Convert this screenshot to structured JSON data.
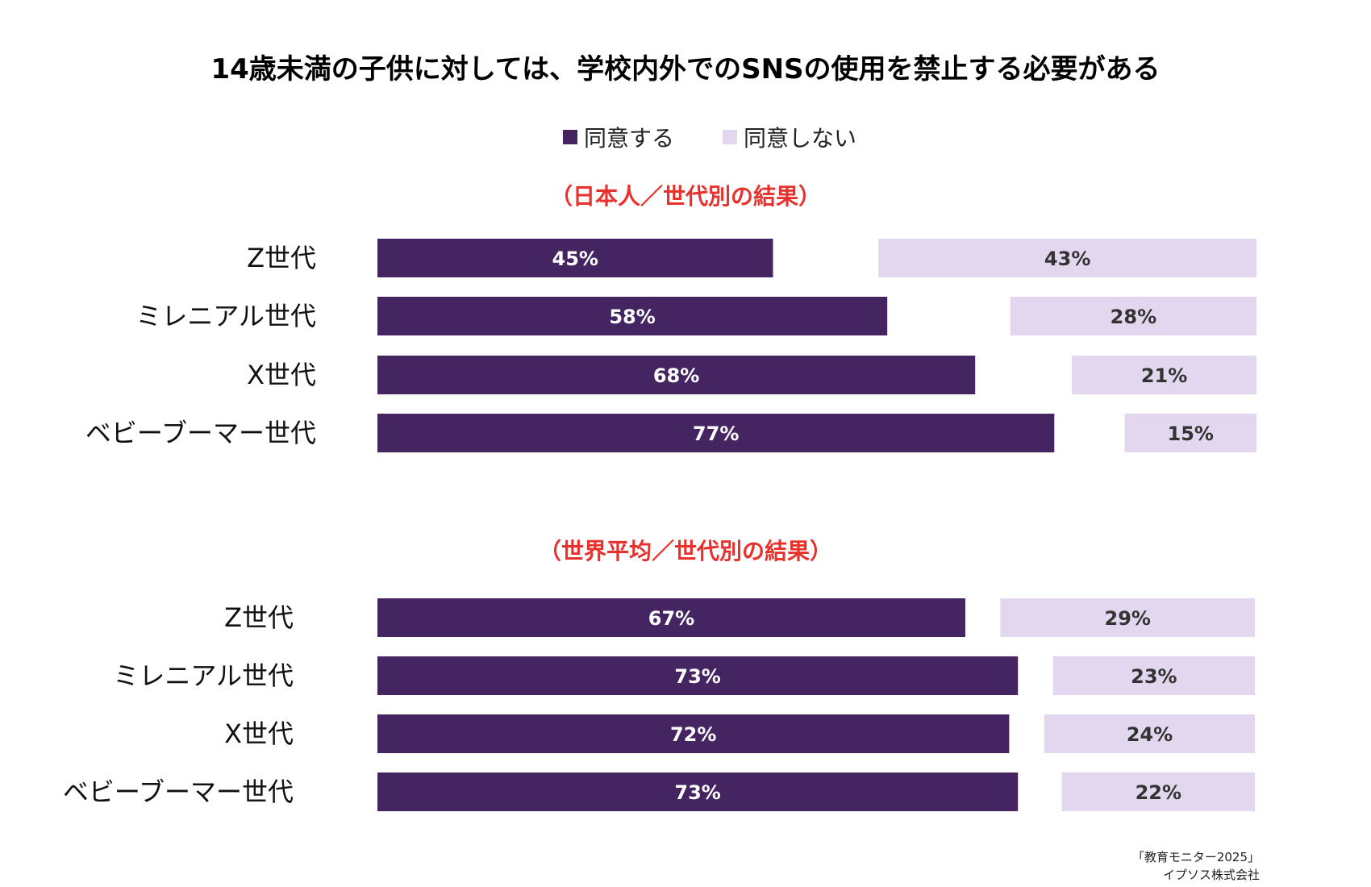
{
  "title": "14歳未満の子供に対しては、学校内外でのSNSの使用を禁止する必要がある",
  "legend": {
    "agree": "同意する",
    "disagree": "同意しない"
  },
  "colors": {
    "agree": "#452462",
    "disagree": "#e2d7ee",
    "section_title": "#e8302c",
    "agree_label": "#ffffff",
    "disagree_label": "#333333"
  },
  "source": {
    "line1": "「教育モニター2025」",
    "line2": "イプソス株式会社"
  },
  "chart_data": [
    {
      "type": "bar",
      "title": "（日本人／世代別の結果）",
      "categories": [
        "Z世代",
        "ミレニアル世代",
        "X世代",
        "ベビーブーマー世代"
      ],
      "series": [
        {
          "name": "同意する",
          "values": [
            45,
            58,
            68,
            77
          ]
        },
        {
          "name": "同意しない",
          "values": [
            43,
            28,
            21,
            15
          ]
        }
      ],
      "value_suffix": "%",
      "xlim": [
        0,
        100
      ],
      "grid": false,
      "legend_position": "top"
    },
    {
      "type": "bar",
      "title": "（世界平均／世代別の結果）",
      "categories": [
        "Z世代",
        "ミレニアル世代",
        "X世代",
        "ベビーブーマー世代"
      ],
      "series": [
        {
          "name": "同意する",
          "values": [
            67,
            73,
            72,
            73
          ]
        },
        {
          "name": "同意しない",
          "values": [
            29,
            23,
            24,
            22
          ]
        }
      ],
      "value_suffix": "%",
      "xlim": [
        0,
        100
      ],
      "grid": false,
      "legend_position": "top"
    }
  ]
}
